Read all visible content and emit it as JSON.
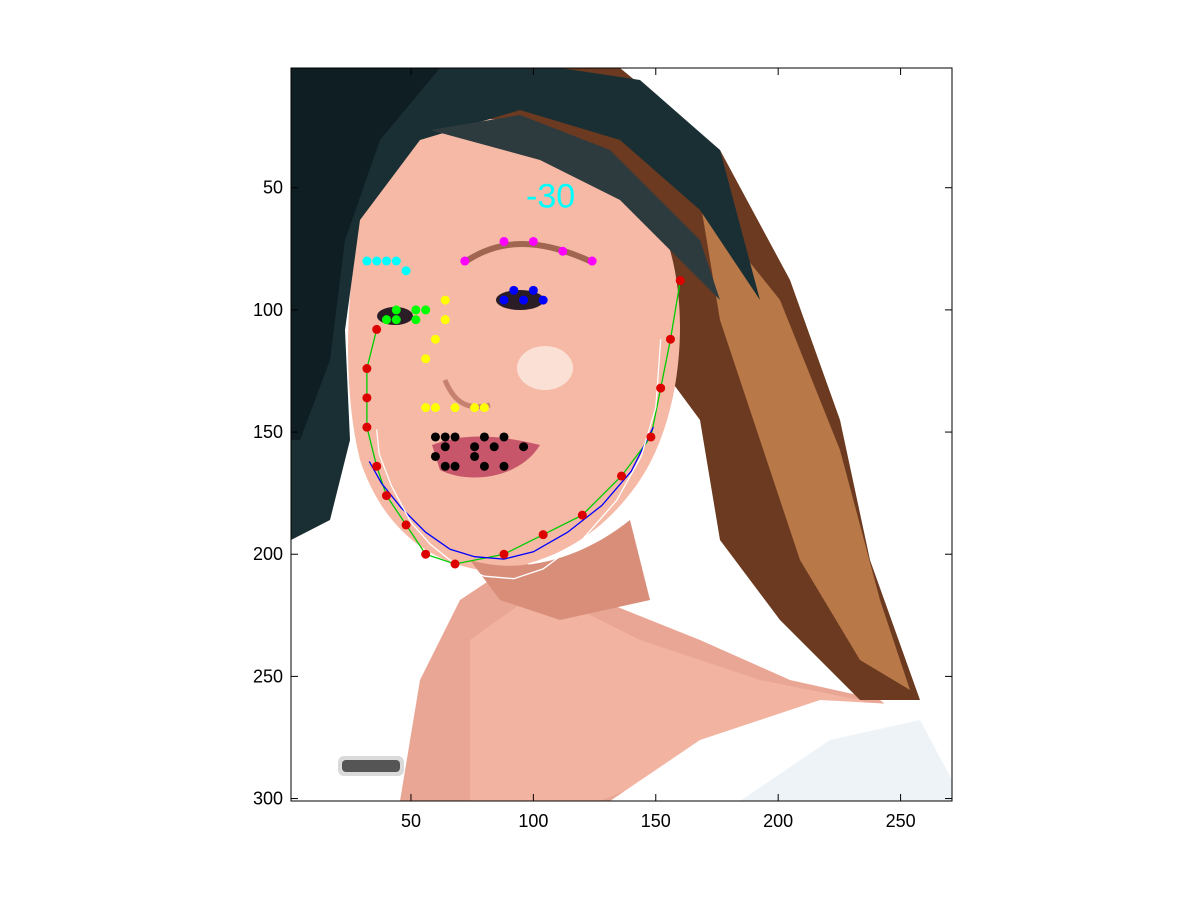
{
  "chart_data": {
    "type": "scatter",
    "title": "",
    "xlabel": "",
    "ylabel": "",
    "xlim": [
      1,
      271
    ],
    "ylim": [
      1,
      301
    ],
    "y_reversed": true,
    "xticks": [
      50,
      100,
      150,
      200,
      250
    ],
    "yticks": [
      50,
      100,
      150,
      200,
      250,
      300
    ],
    "grid": false,
    "annotation": {
      "text": "-30",
      "x": 97,
      "y": 58,
      "color": "#00ffff"
    },
    "series": [
      {
        "color": "#ff00ff",
        "marker": "dot",
        "points": [
          [
            72,
            80
          ],
          [
            88,
            72
          ],
          [
            100,
            72
          ],
          [
            112,
            76
          ],
          [
            124,
            80
          ]
        ]
      },
      {
        "color": "#00ffff",
        "marker": "dot",
        "points": [
          [
            32,
            80
          ],
          [
            36,
            80
          ],
          [
            40,
            80
          ],
          [
            44,
            80
          ],
          [
            48,
            84
          ]
        ]
      },
      {
        "color": "#0000ff",
        "marker": "dot",
        "points": [
          [
            88,
            96
          ],
          [
            92,
            92
          ],
          [
            96,
            96
          ],
          [
            100,
            92
          ],
          [
            104,
            96
          ]
        ]
      },
      {
        "color": "#00ff00",
        "marker": "dot",
        "points": [
          [
            40,
            104
          ],
          [
            44,
            100
          ],
          [
            44,
            104
          ],
          [
            52,
            100
          ],
          [
            56,
            100
          ],
          [
            52,
            104
          ]
        ]
      },
      {
        "color": "#ffff00",
        "marker": "dot",
        "points": [
          [
            64,
            96
          ],
          [
            64,
            104
          ],
          [
            60,
            112
          ],
          [
            56,
            120
          ],
          [
            56,
            140
          ],
          [
            60,
            140
          ],
          [
            68,
            140
          ],
          [
            76,
            140
          ],
          [
            80,
            140
          ]
        ]
      },
      {
        "color": "#000000",
        "marker": "dot",
        "points": [
          [
            60,
            152
          ],
          [
            64,
            152
          ],
          [
            68,
            152
          ],
          [
            64,
            156
          ],
          [
            60,
            160
          ],
          [
            64,
            164
          ],
          [
            68,
            164
          ],
          [
            76,
            156
          ],
          [
            76,
            160
          ],
          [
            80,
            152
          ],
          [
            80,
            164
          ],
          [
            84,
            156
          ],
          [
            88,
            152
          ],
          [
            88,
            164
          ],
          [
            96,
            156
          ]
        ]
      },
      {
        "color": "#dd0000",
        "marker": "dot",
        "points": [
          [
            160,
            88
          ],
          [
            156,
            112
          ],
          [
            152,
            132
          ],
          [
            148,
            152
          ],
          [
            136,
            168
          ],
          [
            120,
            184
          ],
          [
            104,
            192
          ],
          [
            88,
            200
          ],
          [
            68,
            204
          ],
          [
            56,
            200
          ],
          [
            48,
            188
          ],
          [
            40,
            176
          ],
          [
            36,
            164
          ],
          [
            32,
            148
          ],
          [
            32,
            136
          ],
          [
            32,
            124
          ],
          [
            36,
            108
          ]
        ]
      }
    ],
    "curves": [
      {
        "color": "#00cc00",
        "points": [
          [
            160,
            88
          ],
          [
            156,
            112
          ],
          [
            152,
            132
          ],
          [
            148,
            152
          ],
          [
            136,
            168
          ],
          [
            120,
            184
          ],
          [
            104,
            192
          ],
          [
            88,
            200
          ],
          [
            68,
            204
          ],
          [
            56,
            200
          ],
          [
            48,
            188
          ],
          [
            40,
            176
          ],
          [
            36,
            164
          ],
          [
            32,
            148
          ],
          [
            32,
            136
          ],
          [
            32,
            124
          ],
          [
            36,
            108
          ]
        ]
      },
      {
        "color": "#0000ff",
        "points": [
          [
            149,
            148
          ],
          [
            140,
            166
          ],
          [
            128,
            180
          ],
          [
            114,
            191
          ],
          [
            100,
            199
          ],
          [
            88,
            202
          ],
          [
            76,
            201
          ],
          [
            66,
            198
          ],
          [
            56,
            191
          ],
          [
            46,
            181
          ],
          [
            38,
            171
          ],
          [
            33,
            162
          ]
        ]
      },
      {
        "color": "#ffffff",
        "points": [
          [
            152,
            112
          ],
          [
            150,
            140
          ],
          [
            144,
            160
          ],
          [
            134,
            178
          ],
          [
            120,
            194
          ],
          [
            104,
            206
          ],
          [
            92,
            210
          ],
          [
            80,
            209
          ],
          [
            68,
            204
          ],
          [
            58,
            196
          ],
          [
            50,
            187
          ],
          [
            42,
            172
          ],
          [
            37,
            159
          ],
          [
            36,
            149
          ]
        ]
      }
    ]
  }
}
